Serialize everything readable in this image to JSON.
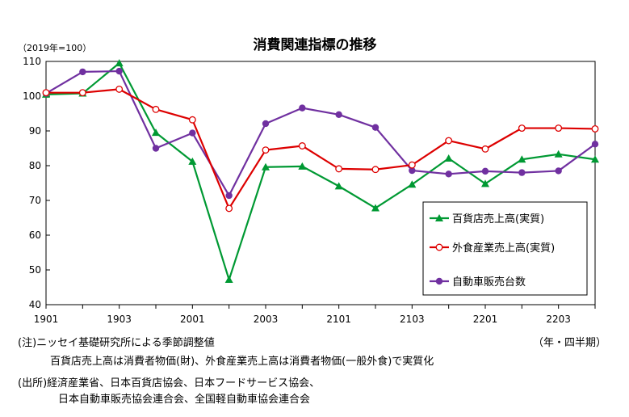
{
  "chart_data": {
    "type": "line",
    "title": "消費関連指標の推移",
    "unit_label": "（2019年=100）",
    "x": [
      "1901",
      "1902",
      "1903",
      "1904",
      "2001",
      "2002",
      "2003",
      "2004",
      "2101",
      "2102",
      "2103",
      "2104",
      "2201",
      "2202",
      "2203",
      "2204"
    ],
    "x_tick_labels": [
      "1901",
      "1903",
      "2001",
      "2003",
      "2101",
      "2103",
      "2201",
      "2203"
    ],
    "xlabel": "（年・四半期）",
    "ylim": [
      40,
      110
    ],
    "y_ticks": [
      40,
      50,
      60,
      70,
      80,
      90,
      100,
      110
    ],
    "grid": false,
    "legend_position": "bottom-right",
    "series": [
      {
        "name": "百貨店売上高(実質)",
        "color": "#009933",
        "marker": "triangle",
        "values": [
          100.5,
          100.8,
          109.5,
          89.5,
          81.2,
          47.2,
          79.6,
          79.8,
          74.1,
          67.8,
          74.6,
          82.1,
          74.8,
          81.8,
          83.3,
          81.8
        ]
      },
      {
        "name": "外食産業売上高(実質)",
        "color": "#dd0000",
        "marker": "circle-open",
        "values": [
          101.0,
          101.0,
          102.0,
          96.2,
          93.2,
          67.7,
          84.5,
          85.7,
          79.1,
          78.9,
          80.2,
          87.2,
          84.8,
          90.8,
          90.8,
          90.6
        ]
      },
      {
        "name": "自動車販売台数",
        "color": "#7030a0",
        "marker": "circle",
        "values": [
          100.8,
          107.0,
          107.2,
          85.0,
          89.4,
          71.4,
          92.1,
          96.6,
          94.7,
          91.0,
          78.6,
          77.6,
          78.4,
          78.0,
          78.5,
          86.2
        ]
      }
    ]
  },
  "notes": {
    "note_line1": "(注)ニッセイ基礎研究所による季節調整値",
    "note_line2": "百貨店売上高は消費者物価(財)、外食産業売上高は消費者物価(一般外食)で実質化",
    "source_line1": "(出所)経済産業省、日本百貨店協会、日本フードサービス協会、",
    "source_line2": "日本自動車販売協会連合会、全国軽自動車協会連合会"
  }
}
